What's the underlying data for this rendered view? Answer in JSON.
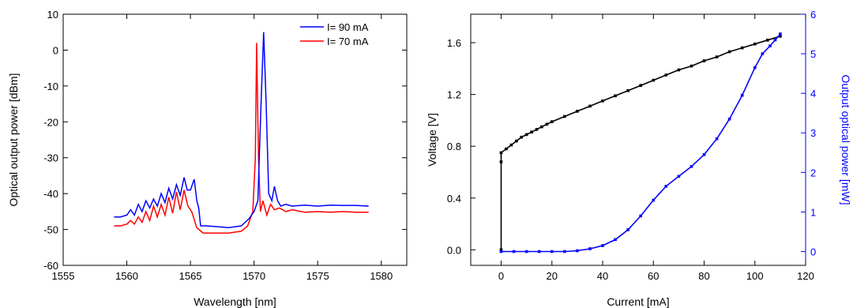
{
  "chart_data": [
    {
      "type": "line",
      "xlabel": "Wavelength [nm]",
      "ylabel": "Optical output power [dBm]",
      "xlim": [
        1555,
        1582
      ],
      "ylim": [
        -60,
        10
      ],
      "xticks": [
        1555,
        1560,
        1565,
        1570,
        1575,
        1580
      ],
      "yticks": [
        10,
        0,
        -10,
        -20,
        -30,
        -40,
        -50,
        -60
      ],
      "legend": "top-right",
      "series": [
        {
          "name": "I= 90 mA",
          "color": "#0000ff",
          "x": [
            1559,
            1559.5,
            1560,
            1560.3,
            1560.6,
            1560.9,
            1561.2,
            1561.5,
            1561.8,
            1562.1,
            1562.4,
            1562.7,
            1563.0,
            1563.3,
            1563.6,
            1563.9,
            1564.2,
            1564.5,
            1564.75,
            1565.0,
            1565.3,
            1565.5,
            1565.65,
            1565.8,
            1566.2,
            1567,
            1568,
            1569,
            1569.6,
            1570.0,
            1570.3,
            1570.55,
            1570.75,
            1570.95,
            1571.15,
            1571.4,
            1571.6,
            1571.85,
            1572.1,
            1572.5,
            1573,
            1574,
            1575,
            1576,
            1577,
            1578,
            1579
          ],
          "y": [
            -46.5,
            -46.5,
            -46,
            -44.5,
            -46,
            -43,
            -45,
            -42,
            -44,
            -41.5,
            -43.5,
            -40,
            -42.5,
            -38.5,
            -41.5,
            -37.5,
            -40.5,
            -35.5,
            -39,
            -39,
            -36,
            -42,
            -44,
            -49,
            -49,
            -49.2,
            -49.5,
            -49,
            -47,
            -45,
            -42,
            -15,
            5,
            -15,
            -40,
            -42,
            -38,
            -42,
            -43.5,
            -43,
            -43.5,
            -43.2,
            -43.5,
            -43.2,
            -43.3,
            -43.3,
            -43.5
          ]
        },
        {
          "name": "I= 70 mA",
          "color": "#ff0000",
          "x": [
            1559,
            1559.5,
            1560,
            1560.3,
            1560.6,
            1560.9,
            1561.2,
            1561.5,
            1561.8,
            1562.1,
            1562.4,
            1562.7,
            1563.0,
            1563.3,
            1563.6,
            1563.9,
            1564.2,
            1564.5,
            1564.8,
            1565.1,
            1565.5,
            1566,
            1567,
            1568,
            1569,
            1569.5,
            1569.9,
            1570.1,
            1570.2,
            1570.35,
            1570.5,
            1570.7,
            1571,
            1571.3,
            1571.6,
            1572,
            1572.5,
            1573,
            1574,
            1575,
            1576,
            1577,
            1578,
            1579
          ],
          "y": [
            -49,
            -49,
            -48.5,
            -47.5,
            -48.5,
            -46.5,
            -48,
            -45,
            -47.5,
            -43.5,
            -46.5,
            -43,
            -46,
            -41,
            -45.5,
            -39.5,
            -44.5,
            -39,
            -43.5,
            -45,
            -49.5,
            -51,
            -51,
            -51,
            -50.5,
            -49,
            -45,
            -30,
            2,
            -30,
            -45,
            -42,
            -46,
            -43,
            -44.5,
            -44,
            -45,
            -44.5,
            -45.2,
            -45,
            -45.2,
            -45,
            -45.2,
            -45.2
          ]
        }
      ]
    },
    {
      "type": "line",
      "xlabel": "Current [mA]",
      "ylabel": "Voltage [V]",
      "ylabel_right": "Output optical power [mW]",
      "xlim": [
        -12,
        120
      ],
      "ylim": [
        -0.12,
        1.82
      ],
      "ylim_right": [
        -0.35,
        6
      ],
      "xticks": [
        0,
        20,
        40,
        60,
        80,
        100,
        120
      ],
      "yticks": [
        0.0,
        0.4,
        0.8,
        1.2,
        1.6
      ],
      "yticks_right": [
        0,
        1,
        2,
        3,
        4,
        5,
        6
      ],
      "series": [
        {
          "axis": "left",
          "color": "#000000",
          "x": [
            0,
            0,
            0,
            2,
            4,
            6,
            8,
            10,
            12,
            14,
            16,
            18,
            20,
            25,
            30,
            35,
            40,
            45,
            50,
            55,
            60,
            65,
            70,
            75,
            80,
            85,
            90,
            95,
            100,
            105,
            110
          ],
          "y": [
            0.0,
            0.68,
            0.75,
            0.78,
            0.81,
            0.84,
            0.87,
            0.89,
            0.91,
            0.93,
            0.95,
            0.97,
            0.99,
            1.03,
            1.07,
            1.11,
            1.15,
            1.19,
            1.23,
            1.27,
            1.31,
            1.35,
            1.39,
            1.42,
            1.46,
            1.49,
            1.53,
            1.56,
            1.59,
            1.62,
            1.65
          ]
        },
        {
          "axis": "right",
          "color": "#0000ff",
          "x": [
            0,
            5,
            10,
            15,
            20,
            25,
            30,
            35,
            40,
            45,
            50,
            55,
            60,
            65,
            70,
            75,
            80,
            85,
            90,
            95,
            100,
            103,
            106,
            108,
            110
          ],
          "y": [
            0,
            0,
            0,
            0,
            0,
            0,
            0.02,
            0.07,
            0.15,
            0.3,
            0.55,
            0.9,
            1.3,
            1.65,
            1.9,
            2.15,
            2.45,
            2.85,
            3.35,
            3.95,
            4.65,
            5.0,
            5.2,
            5.35,
            5.5
          ]
        }
      ]
    }
  ]
}
